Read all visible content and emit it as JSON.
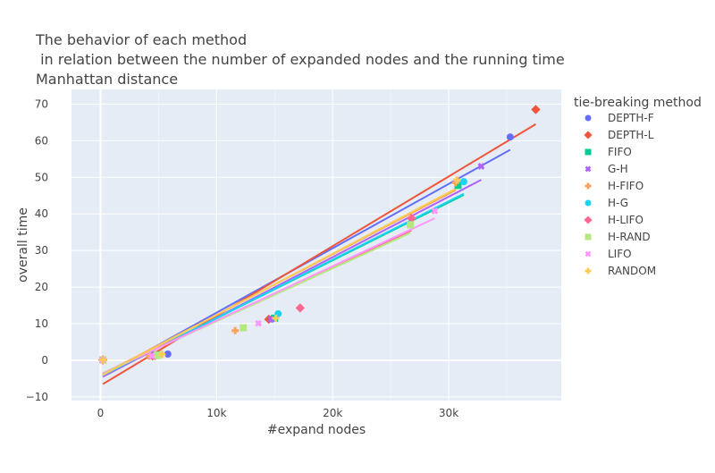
{
  "chart_data": {
    "type": "scatter",
    "title_lines": [
      "The behavior of each method",
      " in relation between the number of expanded nodes and the running time",
      "Manhattan distance"
    ],
    "xlabel": "#expand nodes",
    "ylabel": "overall time",
    "xlim": [
      -2500,
      39700
    ],
    "ylim": [
      -11,
      74
    ],
    "x_ticks": [
      {
        "value": 0,
        "label": "0"
      },
      {
        "value": 10000,
        "label": "10k"
      },
      {
        "value": 20000,
        "label": "20k"
      },
      {
        "value": 30000,
        "label": "30k"
      }
    ],
    "y_ticks": [
      {
        "value": -10,
        "label": "−10"
      },
      {
        "value": 0,
        "label": "0"
      },
      {
        "value": 10,
        "label": "10"
      },
      {
        "value": 20,
        "label": "20"
      },
      {
        "value": 30,
        "label": "30"
      },
      {
        "value": 40,
        "label": "40"
      },
      {
        "value": 50,
        "label": "50"
      },
      {
        "value": 60,
        "label": "60"
      },
      {
        "value": 70,
        "label": "70"
      }
    ],
    "grid": true,
    "legend_title": "tie-breaking method",
    "legend_position": "right",
    "series": [
      {
        "name": "DEPTH-F",
        "color": "#636efa",
        "symbol": "circle",
        "points": [
          [
            200,
            0.1
          ],
          [
            5800,
            1.7
          ],
          [
            14800,
            11.3
          ],
          [
            35300,
            61
          ]
        ],
        "trend": [
          [
            200,
            -4.2
          ],
          [
            35300,
            57.5
          ]
        ]
      },
      {
        "name": "DEPTH-L",
        "color": "#EF553B",
        "symbol": "diamond",
        "points": [
          [
            200,
            0.1
          ],
          [
            4500,
            1.2
          ],
          [
            14500,
            11.2
          ],
          [
            37500,
            68.5
          ]
        ],
        "trend": [
          [
            200,
            -6.5
          ],
          [
            37500,
            64.5
          ]
        ]
      },
      {
        "name": "FIFO",
        "color": "#00cc96",
        "symbol": "square",
        "points": [
          [
            200,
            0.1
          ],
          [
            4800,
            1.4
          ],
          [
            15000,
            11.5
          ],
          [
            30800,
            47.8
          ]
        ],
        "trend": [
          [
            200,
            -4.0
          ],
          [
            31300,
            45.2
          ]
        ]
      },
      {
        "name": "G-H",
        "color": "#ab63fa",
        "symbol": "x",
        "points": [
          [
            200,
            0.1
          ],
          [
            4600,
            1.3
          ],
          [
            14700,
            11.2
          ],
          [
            32800,
            53
          ]
        ],
        "trend": [
          [
            200,
            -4.5
          ],
          [
            32800,
            49.3
          ]
        ]
      },
      {
        "name": "H-FIFO",
        "color": "#FFA15A",
        "symbol": "cross",
        "points": [
          [
            200,
            0.1
          ],
          [
            4200,
            1.1
          ],
          [
            11600,
            8.1
          ],
          [
            30600,
            48.5
          ]
        ],
        "trend": [
          [
            200,
            -3.8
          ],
          [
            30600,
            46.5
          ]
        ]
      },
      {
        "name": "H-G",
        "color": "#19d3f3",
        "symbol": "circle",
        "points": [
          [
            200,
            0.1
          ],
          [
            5000,
            1.5
          ],
          [
            15300,
            12.7
          ],
          [
            31300,
            48.8
          ]
        ],
        "trend": [
          [
            200,
            -4.1
          ],
          [
            31300,
            45.5
          ]
        ]
      },
      {
        "name": "H-LIFO",
        "color": "#FF6692",
        "symbol": "diamond",
        "points": [
          [
            200,
            0.1
          ],
          [
            4700,
            1.3
          ],
          [
            17200,
            14.3
          ],
          [
            26800,
            38.8
          ]
        ],
        "trend": [
          [
            200,
            -3.5
          ],
          [
            26800,
            35.5
          ]
        ]
      },
      {
        "name": "H-RAND",
        "color": "#B6E880",
        "symbol": "square",
        "points": [
          [
            200,
            0.1
          ],
          [
            4900,
            1.4
          ],
          [
            12300,
            8.9
          ],
          [
            26700,
            37
          ]
        ],
        "trend": [
          [
            200,
            -3.5
          ],
          [
            26700,
            34.8
          ]
        ]
      },
      {
        "name": "LIFO",
        "color": "#FF97FF",
        "symbol": "x",
        "points": [
          [
            200,
            0.1
          ],
          [
            4400,
            1.2
          ],
          [
            13600,
            10.1
          ],
          [
            28800,
            40.8
          ]
        ],
        "trend": [
          [
            200,
            -3.7
          ],
          [
            28800,
            38.8
          ]
        ]
      },
      {
        "name": "RANDOM",
        "color": "#FECB52",
        "symbol": "cross",
        "points": [
          [
            200,
            0.1
          ],
          [
            5300,
            1.6
          ],
          [
            15100,
            11.5
          ],
          [
            30700,
            49.3
          ]
        ],
        "trend": [
          [
            200,
            -4.0
          ],
          [
            30700,
            47.0
          ]
        ]
      }
    ]
  }
}
